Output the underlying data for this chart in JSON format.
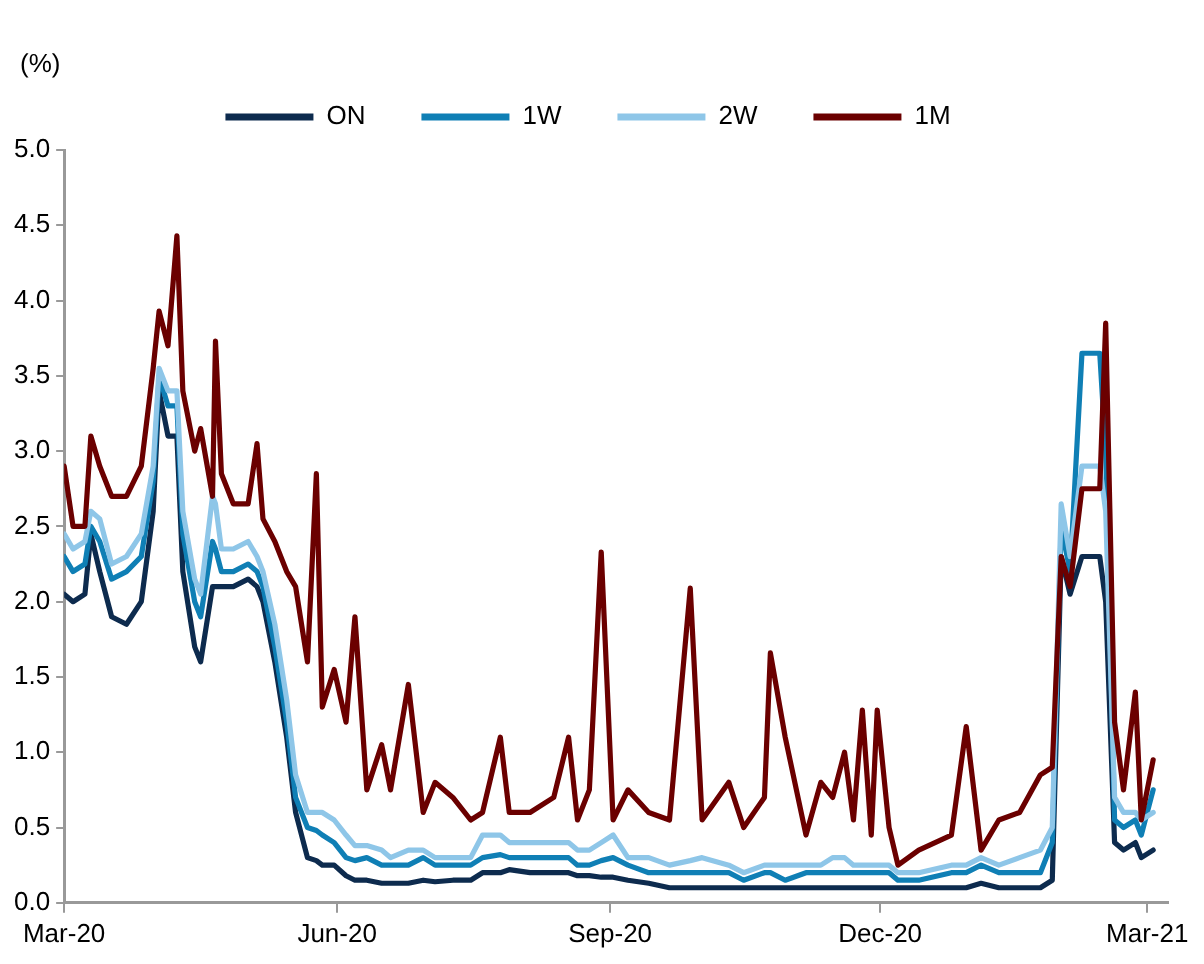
{
  "chart_data": {
    "type": "line",
    "ylabel": "(%)",
    "x": [
      "2020-03-01",
      "2020-03-04",
      "2020-03-08",
      "2020-03-10",
      "2020-03-13",
      "2020-03-17",
      "2020-03-22",
      "2020-03-27",
      "2020-03-31",
      "2020-04-02",
      "2020-04-05",
      "2020-04-08",
      "2020-04-10",
      "2020-04-14",
      "2020-04-16",
      "2020-04-20",
      "2020-04-21",
      "2020-04-23",
      "2020-04-27",
      "2020-05-02",
      "2020-05-05",
      "2020-05-07",
      "2020-05-11",
      "2020-05-15",
      "2020-05-18",
      "2020-05-22",
      "2020-05-25",
      "2020-05-27",
      "2020-05-31",
      "2020-06-04",
      "2020-06-07",
      "2020-06-11",
      "2020-06-16",
      "2020-06-19",
      "2020-06-25",
      "2020-06-30",
      "2020-07-04",
      "2020-07-10",
      "2020-07-16",
      "2020-07-20",
      "2020-07-26",
      "2020-07-29",
      "2020-08-05",
      "2020-08-13",
      "2020-08-18",
      "2020-08-21",
      "2020-08-25",
      "2020-08-29",
      "2020-09-02",
      "2020-09-07",
      "2020-09-14",
      "2020-09-21",
      "2020-09-28",
      "2020-10-02",
      "2020-10-11",
      "2020-10-16",
      "2020-10-23",
      "2020-10-25",
      "2020-10-30",
      "2020-11-06",
      "2020-11-11",
      "2020-11-15",
      "2020-11-19",
      "2020-11-22",
      "2020-11-25",
      "2020-11-28",
      "2020-11-30",
      "2020-12-04",
      "2020-12-07",
      "2020-12-14",
      "2020-12-25",
      "2020-12-30",
      "2021-01-04",
      "2021-01-10",
      "2021-01-17",
      "2021-01-24",
      "2021-01-28",
      "2021-01-31",
      "2021-02-03",
      "2021-02-07",
      "2021-02-13",
      "2021-02-15",
      "2021-02-18",
      "2021-02-21",
      "2021-02-25",
      "2021-02-27",
      "2021-03-03"
    ],
    "series": [
      {
        "name": "ON",
        "color": "#0d2b4e",
        "values": [
          2.05,
          2.0,
          2.05,
          2.45,
          2.2,
          1.9,
          1.85,
          2.0,
          2.6,
          3.4,
          3.1,
          3.1,
          2.2,
          1.7,
          1.6,
          2.1,
          2.1,
          2.1,
          2.1,
          2.15,
          2.1,
          2.0,
          1.6,
          1.1,
          0.6,
          0.3,
          0.28,
          0.25,
          0.25,
          0.18,
          0.15,
          0.15,
          0.13,
          0.13,
          0.13,
          0.15,
          0.14,
          0.15,
          0.15,
          0.2,
          0.2,
          0.22,
          0.2,
          0.2,
          0.2,
          0.18,
          0.18,
          0.17,
          0.17,
          0.15,
          0.13,
          0.1,
          0.1,
          0.1,
          0.1,
          0.1,
          0.1,
          0.1,
          0.1,
          0.1,
          0.1,
          0.1,
          0.1,
          0.1,
          0.1,
          0.1,
          0.1,
          0.1,
          0.1,
          0.1,
          0.1,
          0.1,
          0.13,
          0.1,
          0.1,
          0.1,
          0.15,
          2.3,
          2.05,
          2.3,
          2.3,
          2.0,
          0.4,
          0.35,
          0.4,
          0.3,
          0.35
        ]
      },
      {
        "name": "1W",
        "color": "#0f7fb5",
        "values": [
          2.3,
          2.2,
          2.25,
          2.5,
          2.4,
          2.15,
          2.2,
          2.3,
          2.8,
          3.5,
          3.3,
          3.3,
          2.45,
          2.0,
          1.9,
          2.4,
          2.35,
          2.2,
          2.2,
          2.25,
          2.2,
          2.1,
          1.7,
          1.2,
          0.7,
          0.5,
          0.48,
          0.45,
          0.4,
          0.3,
          0.28,
          0.3,
          0.25,
          0.25,
          0.25,
          0.3,
          0.25,
          0.25,
          0.25,
          0.3,
          0.32,
          0.3,
          0.3,
          0.3,
          0.3,
          0.25,
          0.25,
          0.28,
          0.3,
          0.25,
          0.2,
          0.2,
          0.2,
          0.2,
          0.2,
          0.15,
          0.2,
          0.2,
          0.15,
          0.2,
          0.2,
          0.2,
          0.2,
          0.2,
          0.2,
          0.2,
          0.2,
          0.2,
          0.15,
          0.15,
          0.2,
          0.2,
          0.25,
          0.2,
          0.2,
          0.2,
          0.4,
          2.5,
          2.2,
          3.65,
          3.65,
          3.0,
          0.55,
          0.5,
          0.55,
          0.45,
          0.75
        ]
      },
      {
        "name": "2W",
        "color": "#8ec6e8",
        "values": [
          2.45,
          2.35,
          2.4,
          2.6,
          2.55,
          2.25,
          2.3,
          2.45,
          2.9,
          3.55,
          3.4,
          3.4,
          2.6,
          2.15,
          2.05,
          2.7,
          2.65,
          2.35,
          2.35,
          2.4,
          2.3,
          2.2,
          1.85,
          1.35,
          0.85,
          0.6,
          0.6,
          0.6,
          0.55,
          0.45,
          0.38,
          0.38,
          0.35,
          0.3,
          0.35,
          0.35,
          0.3,
          0.3,
          0.3,
          0.45,
          0.45,
          0.4,
          0.4,
          0.4,
          0.4,
          0.35,
          0.35,
          0.4,
          0.45,
          0.3,
          0.3,
          0.25,
          0.28,
          0.3,
          0.25,
          0.2,
          0.25,
          0.25,
          0.25,
          0.25,
          0.25,
          0.3,
          0.3,
          0.25,
          0.25,
          0.25,
          0.25,
          0.25,
          0.2,
          0.2,
          0.25,
          0.25,
          0.3,
          0.25,
          0.3,
          0.35,
          0.5,
          2.65,
          2.3,
          2.9,
          2.9,
          2.6,
          0.7,
          0.6,
          0.6,
          0.55,
          0.6
        ]
      },
      {
        "name": "1M",
        "color": "#6b0000",
        "values": [
          2.9,
          2.5,
          2.5,
          3.1,
          2.9,
          2.7,
          2.7,
          2.9,
          3.55,
          3.93,
          3.7,
          4.43,
          3.4,
          3.0,
          3.15,
          2.7,
          3.73,
          2.85,
          2.65,
          2.65,
          3.05,
          2.55,
          2.4,
          2.2,
          2.1,
          1.6,
          2.85,
          1.3,
          1.55,
          1.2,
          1.9,
          0.75,
          1.05,
          0.75,
          1.45,
          0.6,
          0.8,
          0.7,
          0.55,
          0.6,
          1.1,
          0.6,
          0.6,
          0.7,
          1.1,
          0.55,
          0.75,
          2.33,
          0.55,
          0.75,
          0.6,
          0.55,
          2.09,
          0.55,
          0.8,
          0.5,
          0.7,
          1.66,
          1.1,
          0.45,
          0.8,
          0.7,
          1.0,
          0.55,
          1.28,
          0.45,
          1.28,
          0.5,
          0.25,
          0.35,
          0.45,
          1.17,
          0.35,
          0.55,
          0.6,
          0.85,
          0.9,
          2.3,
          2.1,
          2.75,
          2.75,
          3.85,
          1.2,
          0.75,
          1.4,
          0.55,
          0.95
        ]
      }
    ],
    "xlim": [
      "2020-03-01",
      "2021-03-08"
    ],
    "xticks": [
      {
        "value": "2020-03-01",
        "label": "Mar-20"
      },
      {
        "value": "2020-06-01",
        "label": "Jun-20"
      },
      {
        "value": "2020-09-01",
        "label": "Sep-20"
      },
      {
        "value": "2020-12-01",
        "label": "Dec-20"
      },
      {
        "value": "2021-03-01",
        "label": "Mar-21"
      }
    ],
    "ylim": [
      0,
      5
    ],
    "yticks": [
      {
        "value": 0,
        "label": "0.0"
      },
      {
        "value": 0.5,
        "label": "0.5"
      },
      {
        "value": 1,
        "label": "1.0"
      },
      {
        "value": 1.5,
        "label": "1.5"
      },
      {
        "value": 2,
        "label": "2.0"
      },
      {
        "value": 2.5,
        "label": "2.5"
      },
      {
        "value": 3,
        "label": "3.0"
      },
      {
        "value": 3.5,
        "label": "3.5"
      },
      {
        "value": 4,
        "label": "4.0"
      },
      {
        "value": 4.5,
        "label": "4.5"
      },
      {
        "value": 5,
        "label": "5.0"
      }
    ],
    "legend": "top",
    "grid": false,
    "marker": "none",
    "line_style": "solid"
  }
}
